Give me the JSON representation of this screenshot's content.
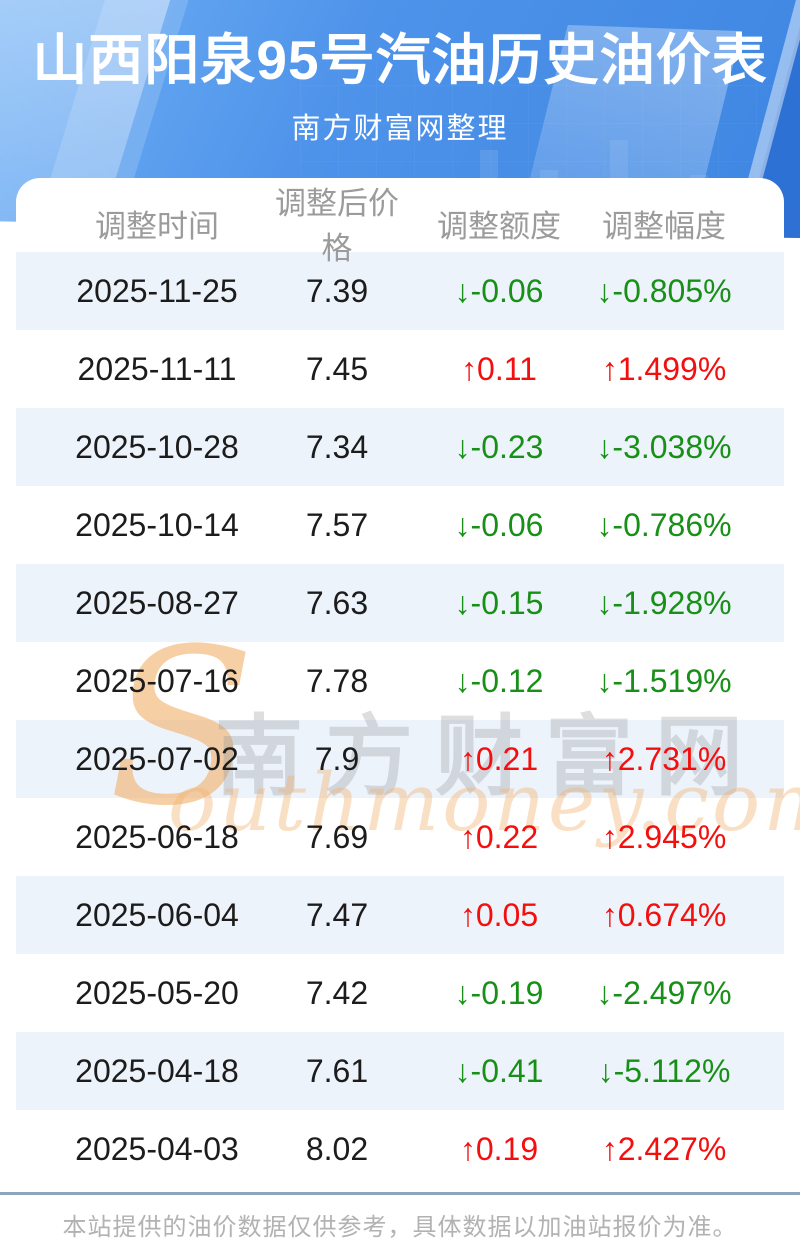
{
  "page": {
    "title": "山西阳泉95号汽油历史油价表",
    "subtitle": "南方财富网整理"
  },
  "table": {
    "columns": [
      "调整时间",
      "调整后价格",
      "调整额度",
      "调整幅度"
    ],
    "rows": [
      {
        "date": "2025-11-25",
        "price": "7.39",
        "change": "↓-0.06",
        "pct": "↓-0.805%",
        "dir": "down"
      },
      {
        "date": "2025-11-11",
        "price": "7.45",
        "change": "↑0.11",
        "pct": "↑1.499%",
        "dir": "up"
      },
      {
        "date": "2025-10-28",
        "price": "7.34",
        "change": "↓-0.23",
        "pct": "↓-3.038%",
        "dir": "down"
      },
      {
        "date": "2025-10-14",
        "price": "7.57",
        "change": "↓-0.06",
        "pct": "↓-0.786%",
        "dir": "down"
      },
      {
        "date": "2025-08-27",
        "price": "7.63",
        "change": "↓-0.15",
        "pct": "↓-1.928%",
        "dir": "down"
      },
      {
        "date": "2025-07-16",
        "price": "7.78",
        "change": "↓-0.12",
        "pct": "↓-1.519%",
        "dir": "down"
      },
      {
        "date": "2025-07-02",
        "price": "7.9",
        "change": "↑0.21",
        "pct": "↑2.731%",
        "dir": "up"
      },
      {
        "date": "2025-06-18",
        "price": "7.69",
        "change": "↑0.22",
        "pct": "↑2.945%",
        "dir": "up"
      },
      {
        "date": "2025-06-04",
        "price": "7.47",
        "change": "↑0.05",
        "pct": "↑0.674%",
        "dir": "up"
      },
      {
        "date": "2025-05-20",
        "price": "7.42",
        "change": "↓-0.19",
        "pct": "↓-2.497%",
        "dir": "down"
      },
      {
        "date": "2025-04-18",
        "price": "7.61",
        "change": "↓-0.41",
        "pct": "↓-5.112%",
        "dir": "down"
      },
      {
        "date": "2025-04-03",
        "price": "8.02",
        "change": "↑0.19",
        "pct": "↑2.427%",
        "dir": "up"
      }
    ]
  },
  "watermark": {
    "en_initial": "S",
    "cn": "南方财富网",
    "en_tail": "outhmoney.com"
  },
  "footer": {
    "disclaimer": "本站提供的油价数据仅供参考，具体数据以加油站报价为准。"
  },
  "colors": {
    "up_red": "#f40f0f",
    "down_green": "#189018",
    "stripe_blue": "#edf3fa",
    "hero_blue": "#4e93ea",
    "header_text_gray": "#9b9b9b",
    "divider_blue_gray": "#8ba6bd"
  },
  "chart_data": {
    "type": "table",
    "title": "山西阳泉95号汽油历史油价表",
    "subtitle": "南方财富网整理",
    "columns": [
      "调整时间",
      "调整后价格",
      "调整额度",
      "调整幅度"
    ],
    "rows": [
      [
        "2025-11-25",
        7.39,
        -0.06,
        "-0.805%"
      ],
      [
        "2025-11-11",
        7.45,
        0.11,
        "+1.499%"
      ],
      [
        "2025-10-28",
        7.34,
        -0.23,
        "-3.038%"
      ],
      [
        "2025-10-14",
        7.57,
        -0.06,
        "-0.786%"
      ],
      [
        "2025-08-27",
        7.63,
        -0.15,
        "-1.928%"
      ],
      [
        "2025-07-16",
        7.78,
        -0.12,
        "-1.519%"
      ],
      [
        "2025-07-02",
        7.9,
        0.21,
        "+2.731%"
      ],
      [
        "2025-06-18",
        7.69,
        0.22,
        "+2.945%"
      ],
      [
        "2025-06-04",
        7.47,
        0.05,
        "+0.674%"
      ],
      [
        "2025-05-20",
        7.42,
        -0.19,
        "-2.497%"
      ],
      [
        "2025-04-18",
        7.61,
        -0.41,
        "-5.112%"
      ],
      [
        "2025-04-03",
        8.02,
        0.19,
        "+2.427%"
      ]
    ],
    "legend_note": "red = increase, green = decrease"
  }
}
